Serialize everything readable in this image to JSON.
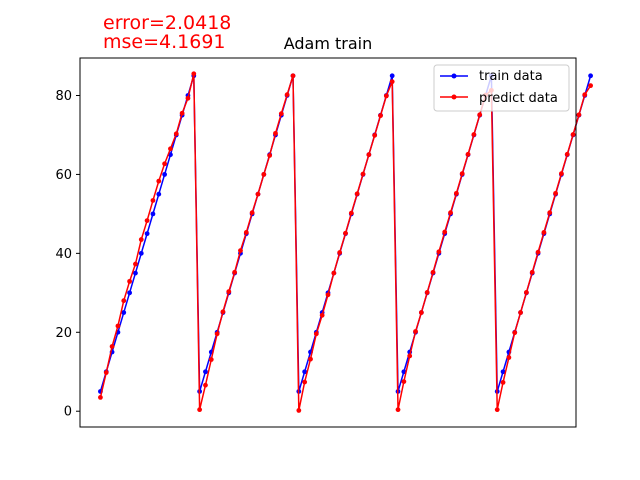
{
  "annotations": {
    "error": "error=2.0418",
    "mse": "mse=4.1691",
    "color": "#ff0000"
  },
  "chart_data": {
    "type": "line",
    "title": "Adam train",
    "xlabel": "",
    "ylabel": "",
    "ylim": [
      -4,
      89.5
    ],
    "xlim": [
      -3.5,
      81.5
    ],
    "yticks": [
      0,
      20,
      40,
      60,
      80
    ],
    "xticks_visible": false,
    "grid": false,
    "legend": "top-right",
    "series": [
      {
        "name": "train data",
        "color": "#0000ff",
        "marker": "circle",
        "values": [
          5,
          10,
          15,
          20,
          25,
          30,
          35,
          40,
          45,
          50,
          55,
          60,
          65,
          70,
          75,
          80,
          85,
          5,
          10,
          15,
          20,
          25,
          30,
          35,
          40,
          45,
          50,
          55,
          60,
          65,
          70,
          75,
          80,
          85,
          5,
          10,
          15,
          20,
          25,
          30,
          35,
          40,
          45,
          50,
          55,
          60,
          65,
          70,
          75,
          80,
          85,
          5,
          10,
          15,
          20,
          25,
          30,
          35,
          40,
          45,
          50,
          55,
          60,
          65,
          70,
          75,
          80,
          85,
          5,
          10,
          15,
          20,
          25,
          30,
          35,
          40,
          45,
          50,
          55,
          60,
          65,
          70,
          75,
          80,
          85
        ]
      },
      {
        "name": "predict data",
        "color": "#ff0000",
        "marker": "circle",
        "values": [
          3.5,
          9.8,
          16.4,
          21.6,
          28.0,
          32.9,
          37.3,
          43.5,
          48.3,
          53.4,
          58.3,
          62.7,
          66.5,
          70.3,
          75.5,
          79.3,
          85.5,
          0.4,
          6.6,
          13.1,
          19.6,
          25.2,
          30.3,
          35.2,
          40.7,
          45.3,
          50.3,
          55.0,
          60.0,
          64.8,
          70.4,
          75.4,
          80.2,
          85.0,
          0.2,
          7.4,
          13.2,
          19.6,
          24.3,
          29.5,
          35.0,
          40.2,
          45.1,
          50.2,
          55.1,
          60.1,
          65.0,
          69.9,
          74.9,
          79.9,
          83.5,
          0.4,
          7.5,
          14.0,
          20.2,
          25.0,
          30.1,
          35.2,
          40.4,
          45.4,
          50.3,
          55.2,
          60.2,
          65.1,
          70.1,
          75.1,
          80.1,
          81.3,
          0.4,
          7.3,
          13.6,
          19.9,
          25.0,
          30.1,
          35.2,
          40.3,
          45.3,
          50.3,
          55.2,
          60.2,
          65.1,
          70.1,
          75.1,
          80.2,
          82.5
        ]
      }
    ]
  }
}
